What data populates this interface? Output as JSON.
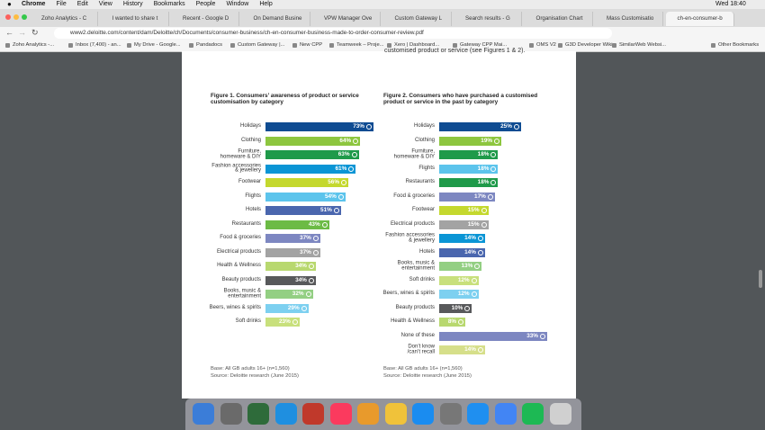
{
  "menu_bar": {
    "items": [
      "Chrome",
      "File",
      "Edit",
      "View",
      "History",
      "Bookmarks",
      "People",
      "Window",
      "Help"
    ],
    "clock": "Wed 18:40"
  },
  "tabs": [
    "Zoho Analytics - C",
    "I wanted to share t",
    "Recent - Google D",
    "On Demand Busine",
    "VPW Manager Ove",
    "Custom Gateway L",
    "Search results - G",
    "Organisation Chart",
    "Mass Customisatio",
    "ch-en-consumer-b"
  ],
  "address": "www2.deloitte.com/content/dam/Deloitte/ch/Documents/consumer-business/ch-en-consumer-business-made-to-order-consumer-review.pdf",
  "bookmarks": [
    "Zoho Analytics -...",
    "Inbox (7,400) - an...",
    "My Drive - Google...",
    "Pandadocs",
    "Custom Gateway |...",
    "New CPP",
    "Teamweek – Proje...",
    "Xero | Dashboard...",
    "Gateway CPP Mai...",
    "OMS V2",
    "G3D Developer Wiki",
    "SimilarWeb Websi..."
  ],
  "other_bookmarks": "Other Bookmarks",
  "intro_text": "customised product or service (see Figures 1 & 2).",
  "chart_data": [
    {
      "type": "bar",
      "orientation": "horizontal",
      "title": "Figure 1. Consumers’ awareness of product or service customisation by category",
      "categories": [
        "Holidays",
        "Clothing",
        "Furniture,\nhomeware & DIY",
        "Fashion accessories\n& jewellery",
        "Footwear",
        "Flights",
        "Hotels",
        "Restaurants",
        "Food & groceries",
        "Electrical products",
        "Health & Wellness",
        "Beauty products",
        "Books, music &\nentertainment",
        "Beers, wines & spirits",
        "Soft drinks"
      ],
      "values": [
        73,
        64,
        63,
        61,
        56,
        54,
        51,
        43,
        37,
        37,
        34,
        34,
        32,
        29,
        23
      ],
      "value_labels": [
        "73%",
        "64%",
        "63%",
        "61%",
        "56%",
        "54%",
        "51%",
        "43%",
        "37%",
        "37%",
        "34%",
        "34%",
        "32%",
        "29%",
        "23%"
      ],
      "colors": [
        "#0f4c92",
        "#8dc63f",
        "#1f9a4a",
        "#0a95d5",
        "#c4d82e",
        "#5cc4ec",
        "#4a66ae",
        "#6cbb45",
        "#7d87c1",
        "#a3a3a3",
        "#b8d86f",
        "#58595b",
        "#93cf83",
        "#7dd0f0",
        "#c8e07c"
      ],
      "base": "Base: All GB adults 16+ (n=1,560)",
      "source": "Source: Deloitte research (June 2015)"
    },
    {
      "type": "bar",
      "orientation": "horizontal",
      "title": "Figure 2. Consumers who have purchased a customised product or service in the past by category",
      "categories": [
        "Holidays",
        "Clothing",
        "Furniture,\nhomeware & DIY",
        "Flights",
        "Restaurants",
        "Food & groceries",
        "Footwear",
        "Electrical products",
        "Fashion accessories\n& jewellery",
        "Hotels",
        "Books, music &\nentertainment",
        "Soft drinks",
        "Beers, wines & spirits",
        "Beauty products",
        "Health & Wellness",
        "None of these",
        "Don’t know\n/can’t recall"
      ],
      "values": [
        25,
        19,
        18,
        18,
        18,
        17,
        15,
        15,
        14,
        14,
        13,
        12,
        12,
        10,
        8,
        33,
        14
      ],
      "value_labels": [
        "25%",
        "19%",
        "18%",
        "18%",
        "18%",
        "17%",
        "15%",
        "15%",
        "14%",
        "14%",
        "13%",
        "12%",
        "12%",
        "10%",
        "8%",
        "33%",
        "14%"
      ],
      "colors": [
        "#0f4c92",
        "#8dc63f",
        "#1f9a4a",
        "#5cc4ec",
        "#1f9a4a",
        "#7d87c1",
        "#c4d82e",
        "#a3a3a3",
        "#0a95d5",
        "#4a66ae",
        "#93cf83",
        "#c8e07c",
        "#7dd0f0",
        "#58595b",
        "#b8d86f",
        "#7d87c1",
        "#d6df8a"
      ],
      "base": "Base: All GB adults 16+ (n=1,560)",
      "source": "Source: Deloitte research (June 2015)"
    }
  ]
}
